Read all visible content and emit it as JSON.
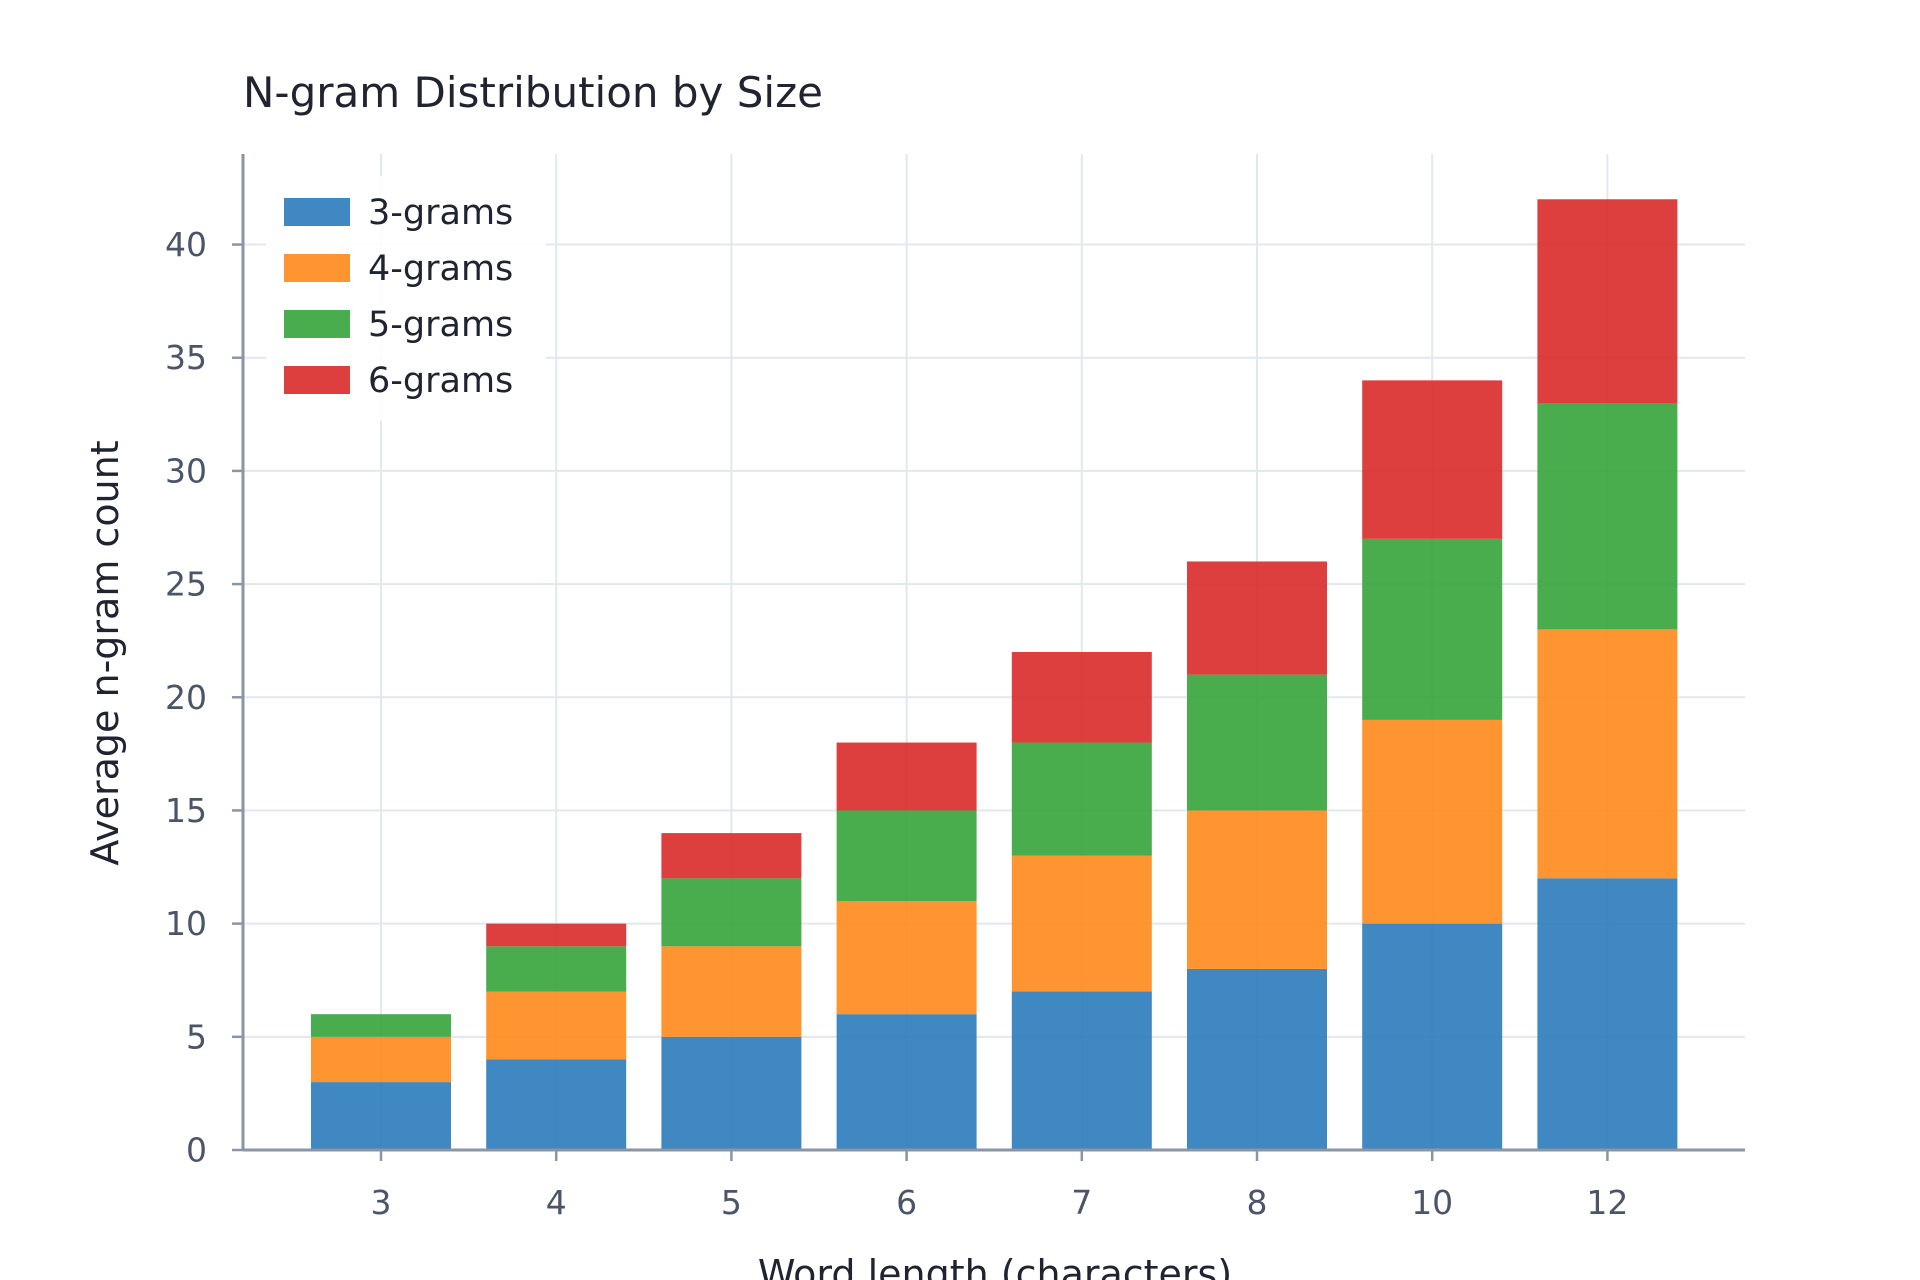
{
  "chart_data": {
    "type": "bar",
    "stacked": true,
    "title": "N-gram Distribution by Size",
    "xlabel": "Word length (characters)",
    "ylabel": "Average n-gram count",
    "categories": [
      "3",
      "4",
      "5",
      "6",
      "7",
      "8",
      "10",
      "12"
    ],
    "ylim": [
      0,
      44
    ],
    "yticks": [
      0,
      5,
      10,
      15,
      20,
      25,
      30,
      35,
      40
    ],
    "grid": true,
    "legend_position": "top-left",
    "series": [
      {
        "name": "3-grams",
        "color": "#2b7bba",
        "values": [
          3,
          4,
          5,
          6,
          7,
          8,
          10,
          12
        ]
      },
      {
        "name": "4-grams",
        "color": "#ff8a1a",
        "values": [
          2,
          3,
          4,
          5,
          6,
          7,
          9,
          11
        ]
      },
      {
        "name": "5-grams",
        "color": "#35a33a",
        "values": [
          1,
          2,
          3,
          4,
          5,
          6,
          8,
          10
        ]
      },
      {
        "name": "6-grams",
        "color": "#d92a2a",
        "values": [
          0,
          1,
          2,
          3,
          4,
          5,
          7,
          9
        ]
      }
    ]
  }
}
